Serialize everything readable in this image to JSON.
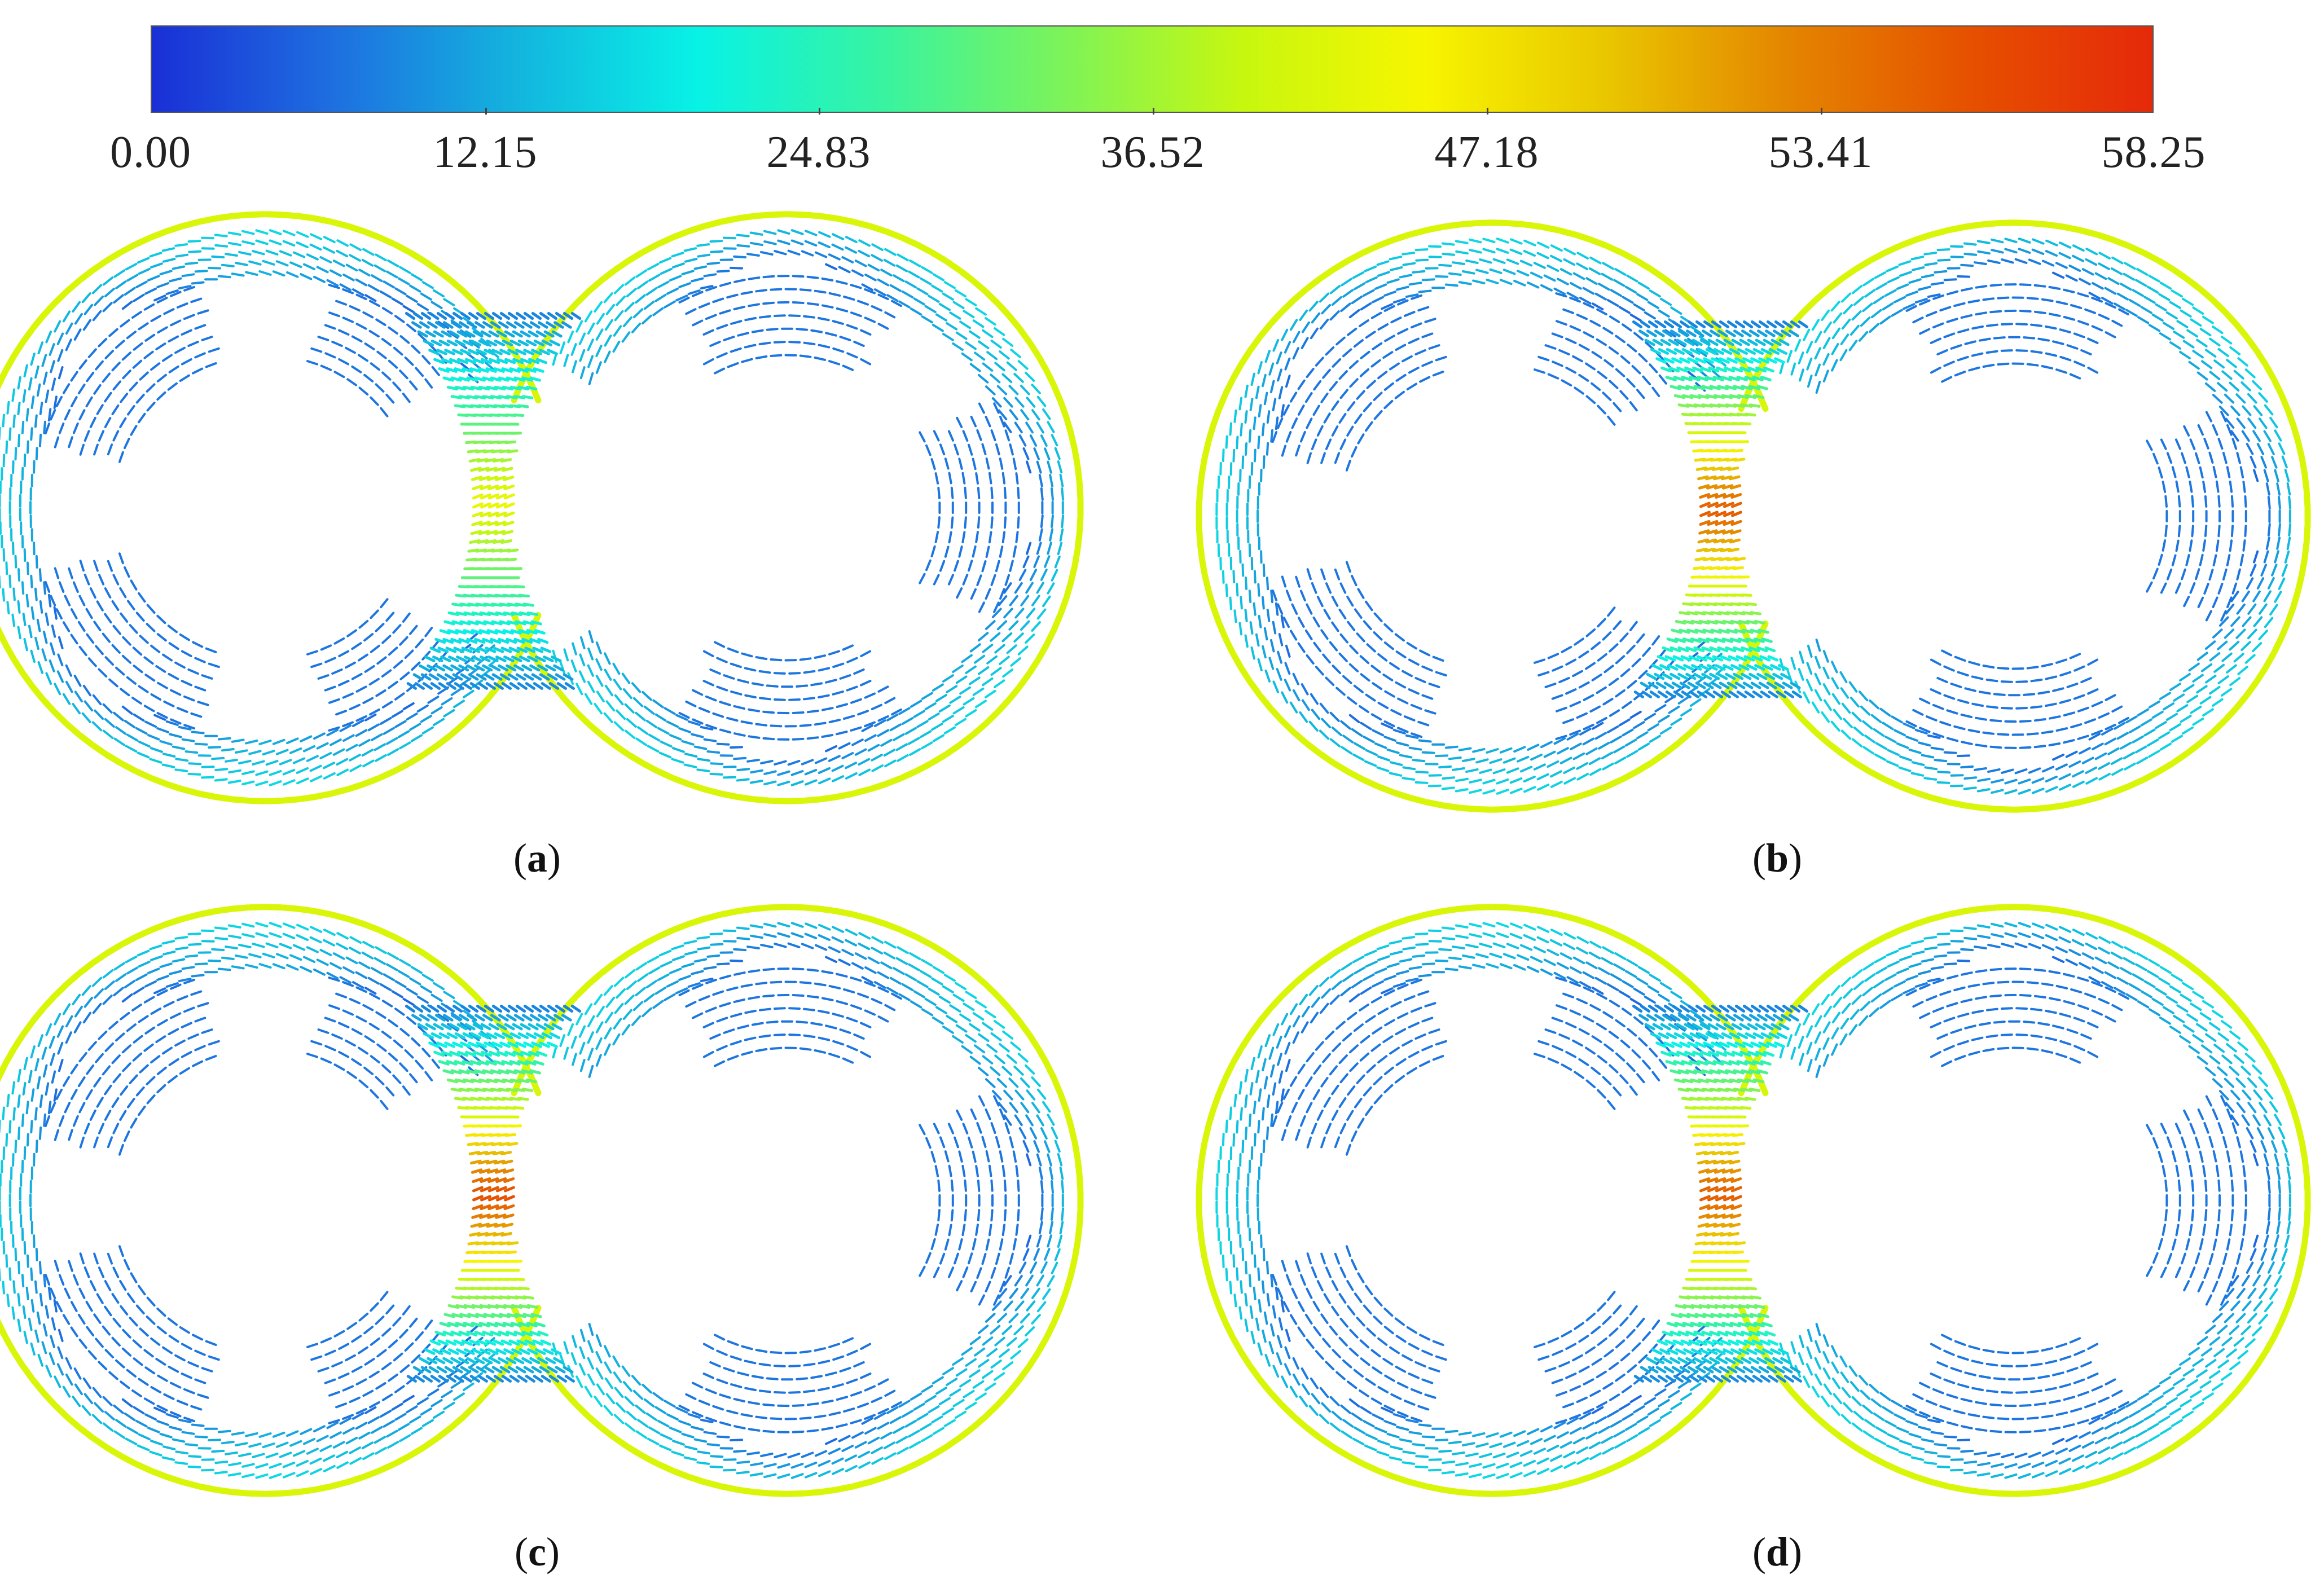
{
  "colorbar": {
    "colors": [
      "#1a2fd6",
      "#1e6fe0",
      "#13b4de",
      "#08f2e6",
      "#37f3a2",
      "#7cf35a",
      "#c7f70f",
      "#f7f500",
      "#e9c600",
      "#e48500",
      "#e65000",
      "#e5290a"
    ],
    "ticks": [
      "0.00",
      "12.15",
      "24.83",
      "36.52",
      "47.18",
      "53.41",
      "58.25"
    ]
  },
  "panels": [
    {
      "open": "(",
      "letter": "a",
      "close": ")"
    },
    {
      "open": "(",
      "letter": "b",
      "close": ")"
    },
    {
      "open": "(",
      "letter": "c",
      "close": ")"
    },
    {
      "open": "(",
      "letter": "d",
      "close": ")"
    }
  ]
}
